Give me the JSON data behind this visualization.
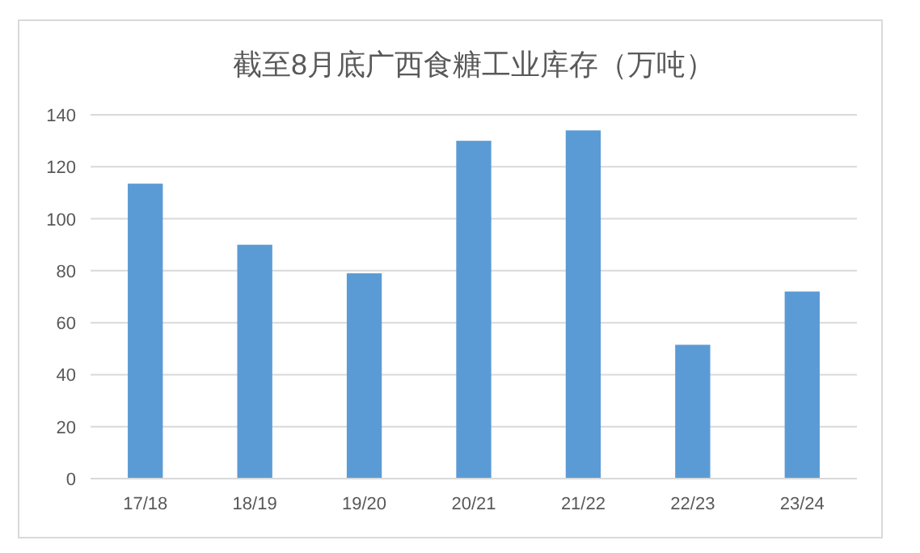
{
  "chart_data": {
    "type": "bar",
    "title": "截至8月底广西食糖工业库存（万吨）",
    "categories": [
      "17/18",
      "18/19",
      "19/20",
      "20/21",
      "21/22",
      "22/23",
      "23/24"
    ],
    "values": [
      113.5,
      90,
      79,
      130,
      134,
      51.5,
      72
    ],
    "color": "#5b9bd5",
    "ylim": [
      0,
      140
    ],
    "yticks": [
      0,
      20,
      40,
      60,
      80,
      100,
      120,
      140
    ],
    "grid": "y"
  }
}
